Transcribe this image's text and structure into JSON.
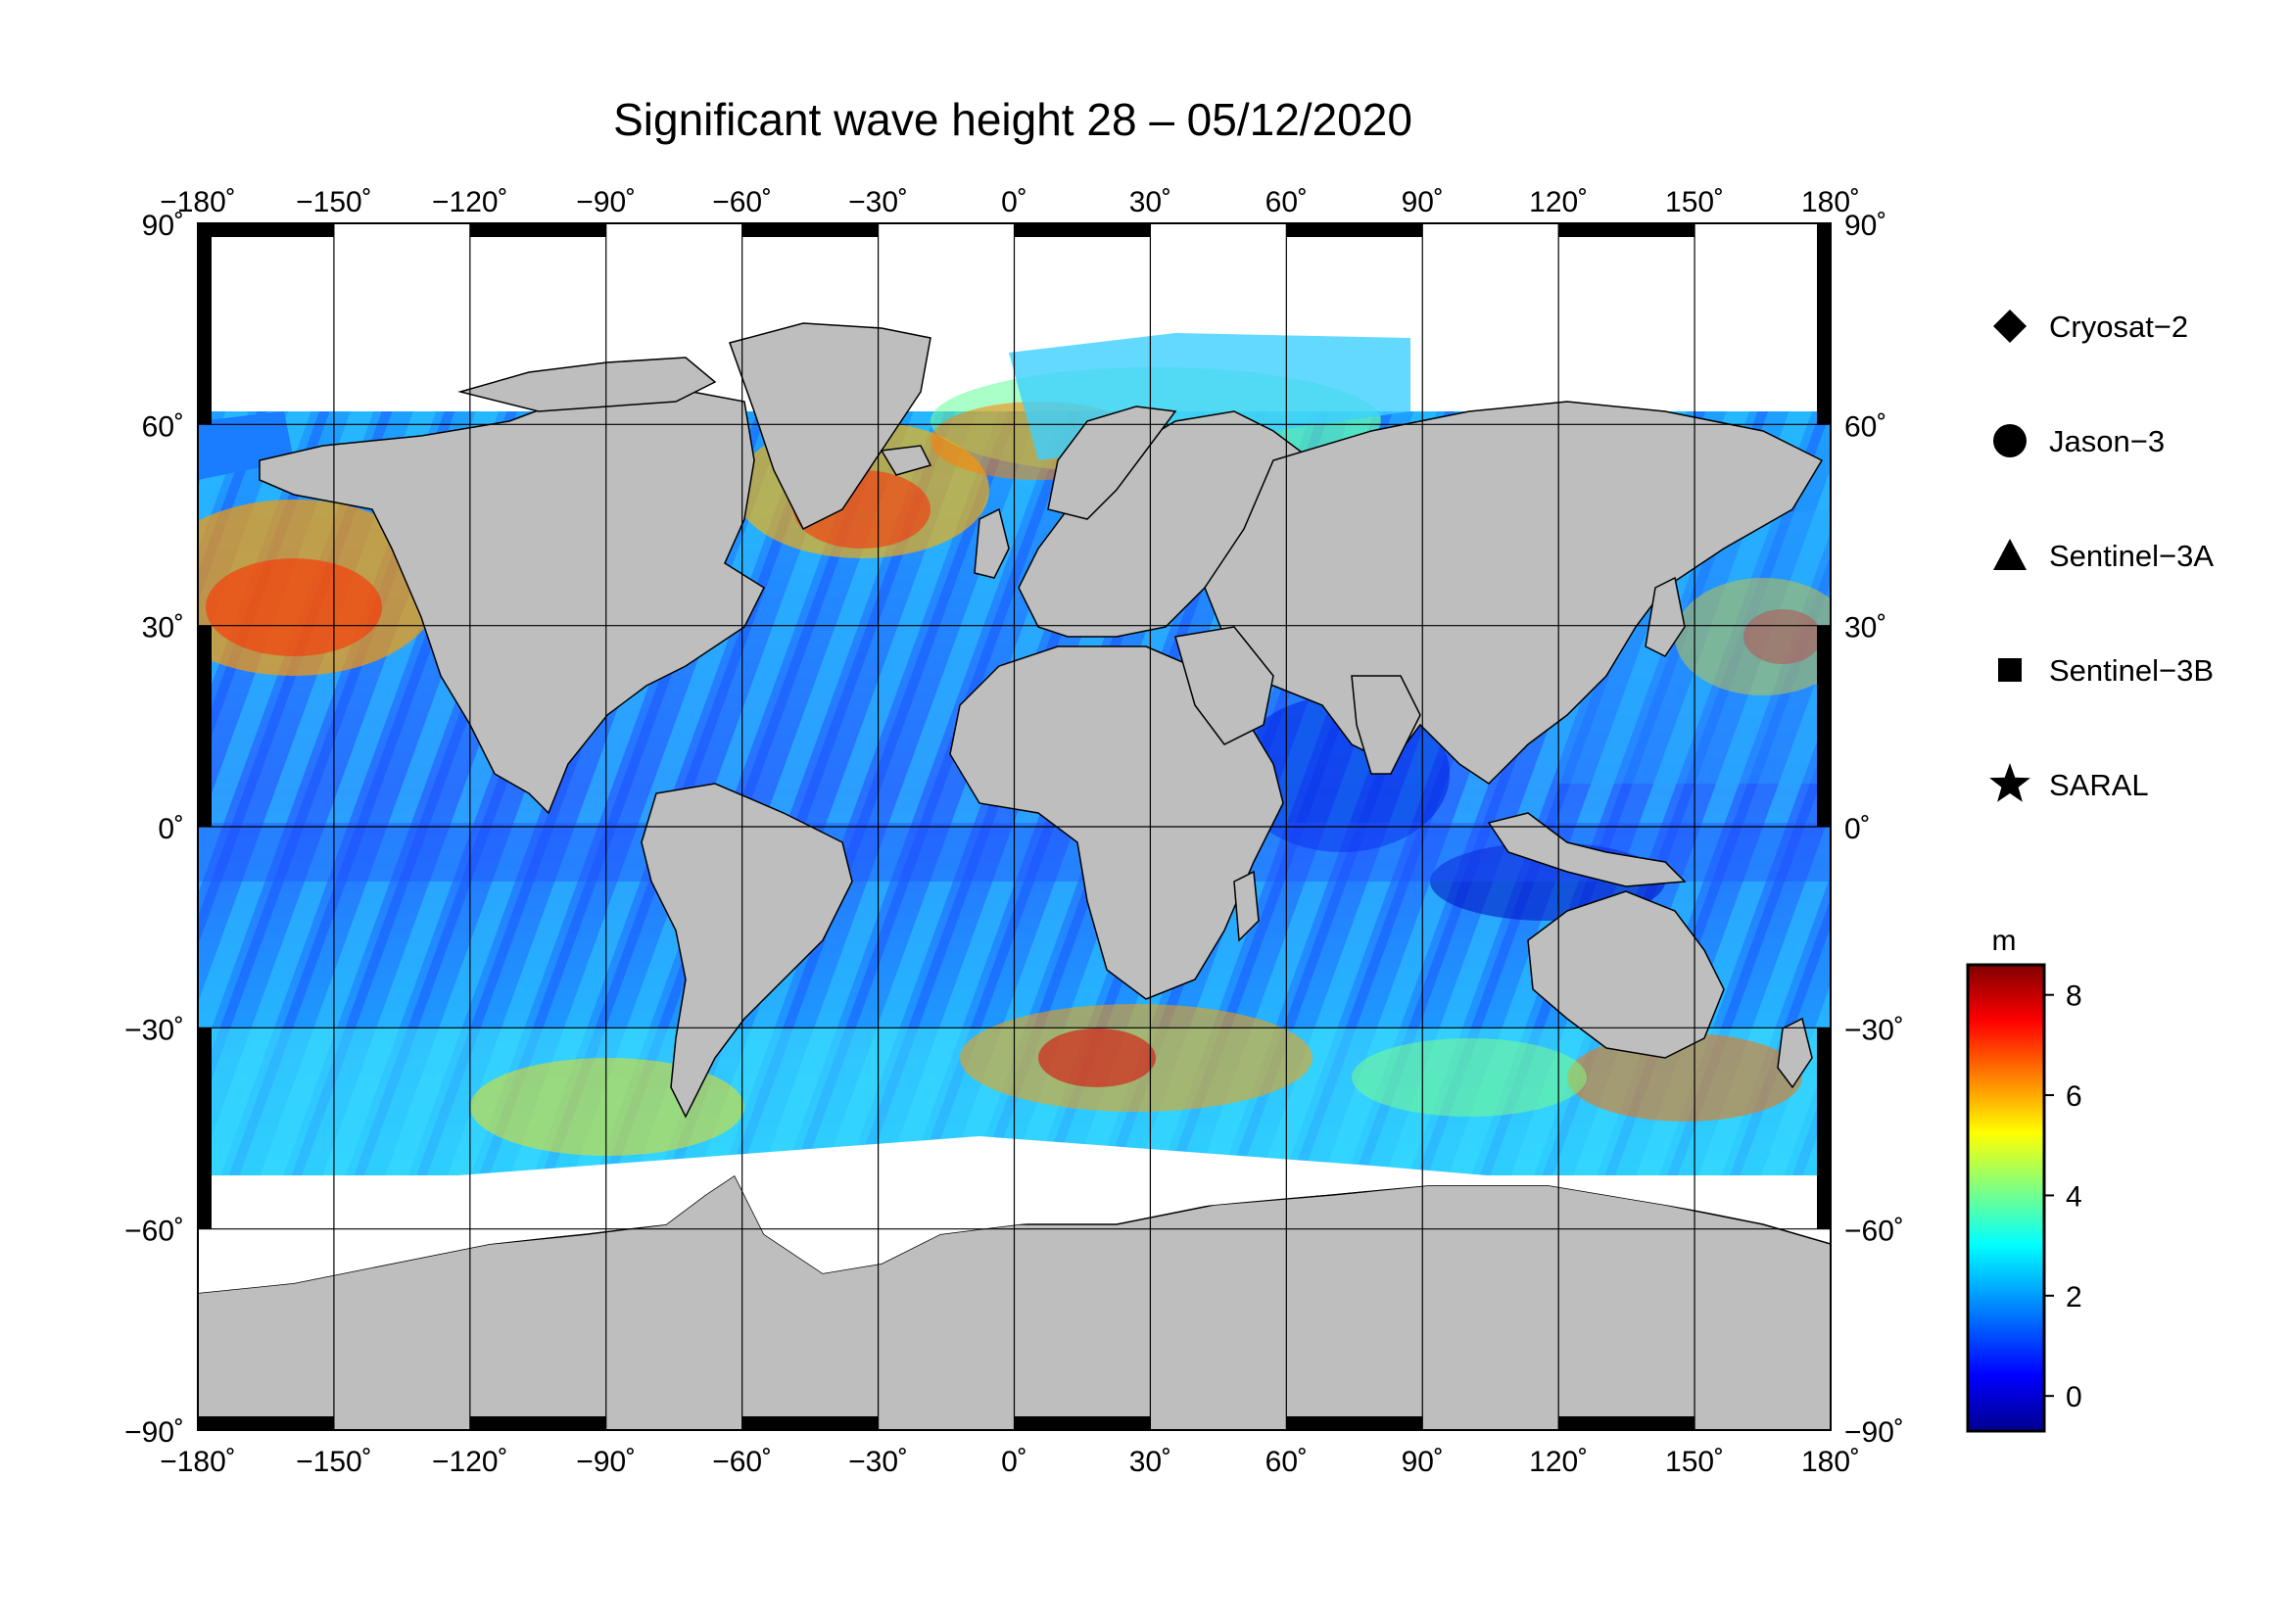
{
  "title": "Significant wave height 28 – 05/12/2020",
  "map": {
    "projection": "equirectangular",
    "lon_range": [
      -180,
      180
    ],
    "lat_range": [
      -90,
      90
    ],
    "lon_ticks": [
      -180,
      -150,
      -120,
      -90,
      -60,
      -30,
      0,
      30,
      60,
      90,
      120,
      150,
      180
    ],
    "lat_ticks": [
      90,
      60,
      30,
      0,
      -30,
      -60,
      -90
    ],
    "lon_tick_labels": [
      "−180˚",
      "−150˚",
      "−120˚",
      "−90˚",
      "−60˚",
      "−30˚",
      "0˚",
      "30˚",
      "60˚",
      "90˚",
      "120˚",
      "150˚",
      "180˚"
    ],
    "lat_tick_labels": [
      "90˚",
      "60˚",
      "30˚",
      "0˚",
      "−30˚",
      "−60˚",
      "−90˚"
    ],
    "grid": true,
    "land_color": "#bebebe",
    "ice_color": "#ffffff"
  },
  "legend": {
    "placement": "right",
    "items": [
      {
        "label": "Cryosat−2",
        "marker": "diamond"
      },
      {
        "label": "Jason−3",
        "marker": "circle"
      },
      {
        "label": "Sentinel−3A",
        "marker": "triangle"
      },
      {
        "label": "Sentinel−3B",
        "marker": "square"
      },
      {
        "label": "SARAL",
        "marker": "star"
      }
    ]
  },
  "colorbar": {
    "unit": "m",
    "min": -0.7,
    "max": 8.6,
    "ticks": [
      0,
      2,
      4,
      6,
      8
    ],
    "tick_labels": [
      "0",
      "2",
      "4",
      "6",
      "8"
    ],
    "colormap": [
      "#00008f",
      "#0000ff",
      "#0080ff",
      "#00ffff",
      "#80ff80",
      "#ffff00",
      "#ff8000",
      "#ff0000",
      "#800000"
    ]
  }
}
